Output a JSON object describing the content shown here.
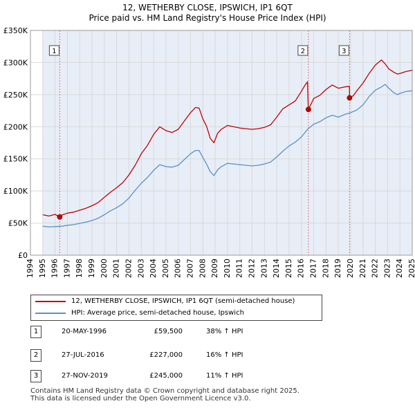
{
  "header": {
    "title_line1": "12, WETHERBY CLOSE, IPSWICH, IP1 6QT",
    "title_line2": "Price paid vs. HM Land Registry's House Price Index (HPI)"
  },
  "legend": {
    "property_label": "12, WETHERBY CLOSE, IPSWICH, IP1 6QT (semi-detached house)",
    "hpi_label": "HPI: Average price, semi-detached house, Ipswich"
  },
  "colors": {
    "property": "#c00000",
    "hpi": "#5b8fc9",
    "grid": "#d8d8d8",
    "band": "#e8eef7",
    "marker_line": "#e07070"
  },
  "sales": [
    {
      "num": "1",
      "date": "20-MAY-1996",
      "price": "£59,500",
      "hpi": "38% ↑ HPI"
    },
    {
      "num": "2",
      "date": "27-JUL-2016",
      "price": "£227,000",
      "hpi": "16% ↑ HPI"
    },
    {
      "num": "3",
      "date": "27-NOV-2019",
      "price": "£245,000",
      "hpi": "11% ↑ HPI"
    }
  ],
  "footer": {
    "line1": "Contains HM Land Registry data © Crown copyright and database right 2025.",
    "line2": "This data is licensed under the Open Government Licence v3.0."
  },
  "chart_data": {
    "type": "line",
    "title": "12, WETHERBY CLOSE, IPSWICH, IP1 6QT",
    "subtitle": "Price paid vs. HM Land Registry's House Price Index (HPI)",
    "xlabel": "",
    "ylabel": "",
    "xlim": [
      1994,
      2025
    ],
    "ylim": [
      0,
      350000
    ],
    "x_ticks": [
      1994,
      1995,
      1996,
      1997,
      1998,
      1999,
      2000,
      2001,
      2002,
      2003,
      2004,
      2005,
      2006,
      2007,
      2008,
      2009,
      2010,
      2011,
      2012,
      2013,
      2014,
      2015,
      2016,
      2017,
      2018,
      2019,
      2020,
      2021,
      2022,
      2023,
      2024,
      2025
    ],
    "y_ticks": [
      0,
      50000,
      100000,
      150000,
      200000,
      250000,
      300000,
      350000
    ],
    "y_tick_labels": [
      "£0",
      "£50K",
      "£100K",
      "£150K",
      "£200K",
      "£250K",
      "£300K",
      "£350K"
    ],
    "grid": true,
    "data_range_start": 1995.0,
    "data_range_end": 2025.0,
    "series": [
      {
        "name": "12, WETHERBY CLOSE, IPSWICH, IP1 6QT (semi-detached house)",
        "x": [
          1995.0,
          1995.5,
          1996.0,
          1996.38,
          1996.5,
          1997.0,
          1997.5,
          1998.0,
          1998.5,
          1999.0,
          1999.5,
          2000.0,
          2000.5,
          2001.0,
          2001.5,
          2002.0,
          2002.5,
          2003.0,
          2003.5,
          2004.0,
          2004.5,
          2005.0,
          2005.5,
          2006.0,
          2006.5,
          2007.0,
          2007.4,
          2007.7,
          2008.0,
          2008.3,
          2008.6,
          2008.9,
          2009.2,
          2009.5,
          2010.0,
          2010.5,
          2011.0,
          2011.5,
          2012.0,
          2012.5,
          2013.0,
          2013.5,
          2014.0,
          2014.5,
          2015.0,
          2015.5,
          2016.0,
          2016.3,
          2016.5,
          2016.56,
          2016.8,
          2017.0,
          2017.5,
          2018.0,
          2018.5,
          2019.0,
          2019.5,
          2019.9,
          2019.91,
          2020.2,
          2020.5,
          2021.0,
          2021.5,
          2022.0,
          2022.5,
          2022.8,
          2023.1,
          2023.5,
          2023.8,
          2024.0,
          2024.5,
          2025.0
        ],
        "values": [
          63000,
          61000,
          63500,
          59500,
          62000,
          65500,
          67000,
          70000,
          73000,
          77000,
          82000,
          90000,
          98000,
          105000,
          113000,
          125000,
          140000,
          158000,
          171000,
          188000,
          200000,
          194000,
          191000,
          196000,
          209000,
          222000,
          230000,
          229000,
          212000,
          201000,
          182000,
          175000,
          190000,
          196000,
          202000,
          200000,
          198000,
          197000,
          196000,
          197000,
          199000,
          203000,
          215000,
          228000,
          234000,
          240000,
          255000,
          265000,
          270000,
          227000,
          236000,
          244000,
          249000,
          258000,
          265000,
          260000,
          262000,
          263000,
          245000,
          248000,
          256000,
          268000,
          283000,
          296000,
          304000,
          298000,
          290000,
          285000,
          282000,
          283000,
          286000,
          288000
        ]
      },
      {
        "name": "HPI: Average price, semi-detached house, Ipswich",
        "x": [
          1995.0,
          1995.5,
          1996.0,
          1996.5,
          1997.0,
          1997.5,
          1998.0,
          1998.5,
          1999.0,
          1999.5,
          2000.0,
          2000.5,
          2001.0,
          2001.5,
          2002.0,
          2002.5,
          2003.0,
          2003.5,
          2004.0,
          2004.5,
          2005.0,
          2005.5,
          2006.0,
          2006.5,
          2007.0,
          2007.4,
          2007.7,
          2008.0,
          2008.3,
          2008.6,
          2008.9,
          2009.2,
          2009.5,
          2010.0,
          2010.5,
          2011.0,
          2011.5,
          2012.0,
          2012.5,
          2013.0,
          2013.5,
          2014.0,
          2014.5,
          2015.0,
          2015.5,
          2016.0,
          2016.5,
          2017.0,
          2017.5,
          2018.0,
          2018.5,
          2019.0,
          2019.5,
          2020.0,
          2020.5,
          2021.0,
          2021.5,
          2022.0,
          2022.5,
          2022.8,
          2023.1,
          2023.5,
          2023.8,
          2024.0,
          2024.5,
          2025.0
        ],
        "values": [
          45000,
          44000,
          44500,
          45000,
          46500,
          47500,
          49500,
          51500,
          54000,
          57500,
          63000,
          69000,
          74000,
          80000,
          89000,
          101000,
          112000,
          121000,
          132000,
          141000,
          138000,
          137000,
          140000,
          149000,
          158000,
          163000,
          163000,
          152000,
          142000,
          130000,
          124000,
          133000,
          138000,
          143000,
          142000,
          141000,
          140000,
          139000,
          140000,
          142000,
          145000,
          153000,
          162000,
          170000,
          176000,
          184000,
          196000,
          204000,
          208000,
          214000,
          218000,
          215000,
          219000,
          222000,
          226000,
          234000,
          247000,
          257000,
          262000,
          266000,
          260000,
          253000,
          250000,
          252000,
          255000,
          256000
        ]
      }
    ],
    "sale_markers": [
      {
        "label": "1",
        "x": 1996.38,
        "value": 59500
      },
      {
        "label": "2",
        "x": 2016.57,
        "value": 227000
      },
      {
        "label": "3",
        "x": 2019.91,
        "value": 245000
      }
    ]
  }
}
